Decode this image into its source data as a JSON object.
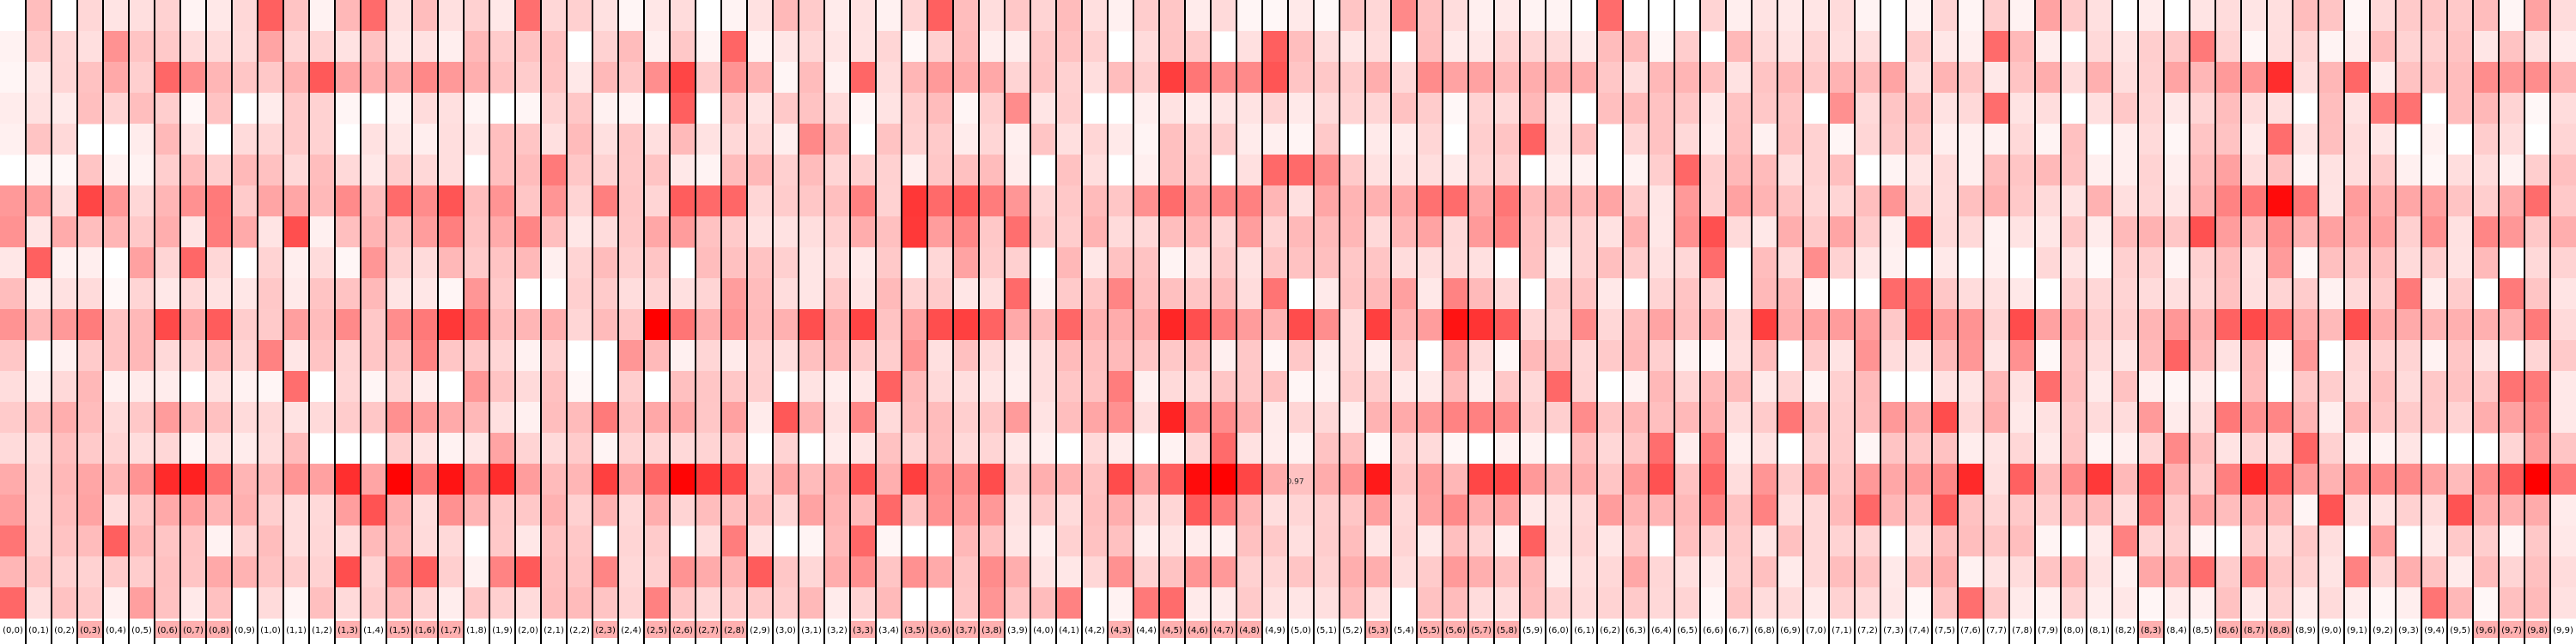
{
  "chart_data": {
    "type": "heatmap",
    "title": "",
    "xlabel": "",
    "ylabel": "",
    "columns": [
      "(0,0)",
      "(0,1)",
      "(0,2)",
      "(0,3)",
      "(0,4)",
      "(0,5)",
      "(0,6)",
      "(0,7)",
      "(0,8)",
      "(0,9)",
      "(1,0)",
      "(1,1)",
      "(1,2)",
      "(1,3)",
      "(1,4)",
      "(1,5)",
      "(1,6)",
      "(1,7)",
      "(1,8)",
      "(1,9)",
      "(2,0)",
      "(2,1)",
      "(2,2)",
      "(2,3)",
      "(2,4)",
      "(2,5)",
      "(2,6)",
      "(2,7)",
      "(2,8)",
      "(2,9)",
      "(3,0)",
      "(3,1)",
      "(3,2)",
      "(3,3)",
      "(3,4)",
      "(3,5)",
      "(3,6)",
      "(3,7)",
      "(3,8)",
      "(3,9)",
      "(4,0)",
      "(4,1)",
      "(4,2)",
      "(4,3)",
      "(4,4)",
      "(4,5)",
      "(4,6)",
      "(4,7)",
      "(4,8)",
      "(4,9)",
      "(5,0)",
      "(5,1)",
      "(5,2)",
      "(5,3)",
      "(5,4)",
      "(5,5)",
      "(5,6)",
      "(5,7)",
      "(5,8)",
      "(5,9)",
      "(6,0)",
      "(6,1)",
      "(6,2)",
      "(6,3)",
      "(6,4)",
      "(6,5)",
      "(6,6)",
      "(6,7)",
      "(6,8)",
      "(6,9)",
      "(7,0)",
      "(7,1)",
      "(7,2)",
      "(7,3)",
      "(7,4)",
      "(7,5)",
      "(7,6)",
      "(7,7)",
      "(7,8)",
      "(7,9)",
      "(8,0)",
      "(8,1)",
      "(8,2)",
      "(8,3)",
      "(8,4)",
      "(8,5)",
      "(8,6)",
      "(8,7)",
      "(8,8)",
      "(8,9)",
      "(9,0)",
      "(9,1)",
      "(9,2)",
      "(9,3)",
      "(9,4)",
      "(9,5)",
      "(9,6)",
      "(9,7)",
      "(9,8)",
      "(9,9)"
    ],
    "highlighted_columns": [
      "(0,3)",
      "(0,6)",
      "(0,7)",
      "(0,8)",
      "(1,3)",
      "(1,5)",
      "(1,6)",
      "(1,7)",
      "(2,3)",
      "(2,5)",
      "(2,6)",
      "(2,7)",
      "(2,8)",
      "(3,3)",
      "(3,5)",
      "(3,6)",
      "(3,7)",
      "(3,8)",
      "(4,3)",
      "(4,5)",
      "(4,6)",
      "(4,7)",
      "(4,8)",
      "(5,3)",
      "(5,5)",
      "(5,6)",
      "(5,7)",
      "(5,8)",
      "(8,3)",
      "(8,6)",
      "(8,7)",
      "(8,8)",
      "(9,6)",
      "(9,7)",
      "(9,8)"
    ],
    "rows": 20,
    "annotations": [
      {
        "column": "(4,9)",
        "row": 15,
        "text": "0.97"
      }
    ],
    "colorscale": {
      "low": "#ffffff",
      "high": "#ff0000"
    },
    "grid": false,
    "legend": "none"
  }
}
